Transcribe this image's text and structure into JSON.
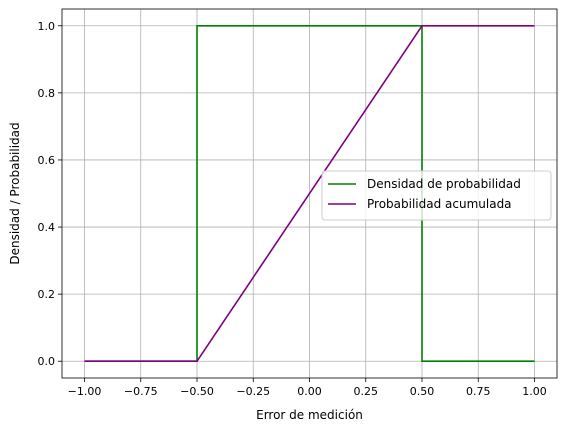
{
  "chart_data": {
    "type": "line",
    "xlabel": "Error de medición",
    "ylabel": "Densidad / Probabilidad",
    "xlim": [
      -1.1,
      1.1
    ],
    "ylim": [
      -0.05,
      1.05
    ],
    "xticks": [
      -1.0,
      -0.75,
      -0.5,
      -0.25,
      0.0,
      0.25,
      0.5,
      0.75,
      1.0
    ],
    "xtick_labels": [
      "−1.00",
      "−0.75",
      "−0.50",
      "−0.25",
      "0.00",
      "0.25",
      "0.50",
      "0.75",
      "1.00"
    ],
    "yticks": [
      0.0,
      0.2,
      0.4,
      0.6,
      0.8,
      1.0
    ],
    "ytick_labels": [
      "0.0",
      "0.2",
      "0.4",
      "0.6",
      "0.8",
      "1.0"
    ],
    "grid": true,
    "legend_position": "center-right",
    "series": [
      {
        "name": "Densidad de probabilidad",
        "color": "#008000",
        "x": [
          -1.0,
          -0.5,
          -0.5,
          0.5,
          0.5,
          1.0
        ],
        "y": [
          0.0,
          0.0,
          1.0,
          1.0,
          0.0,
          0.0
        ]
      },
      {
        "name": "Probabilidad acumulada",
        "color": "#800080",
        "x": [
          -1.0,
          -0.5,
          0.5,
          1.0
        ],
        "y": [
          0.0,
          0.0,
          1.0,
          1.0
        ]
      }
    ]
  }
}
